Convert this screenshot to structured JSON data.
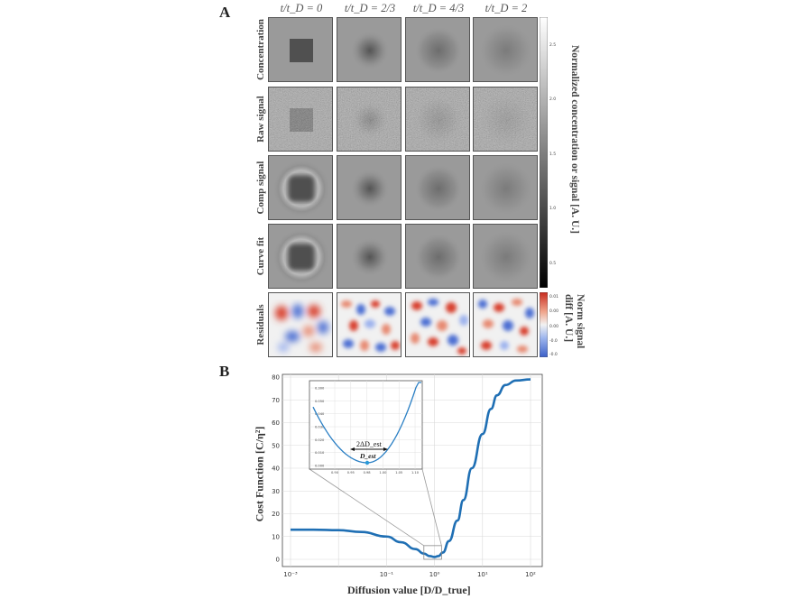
{
  "panel_a": {
    "letter": "A",
    "column_headers": [
      "t/t_D = 0",
      "t/t_D = 2/3",
      "t/t_D = 4/3",
      "t/t_D = 2"
    ],
    "row_labels": [
      "Concentration",
      "Raw signal",
      "Comp signal",
      "Curve fit",
      "Residuals"
    ],
    "colorbar_gray": {
      "title": "Normalized concentration or signal [A. U.]",
      "ticks": [
        "2.5",
        "2.0",
        "1.5",
        "1.0",
        "0.5"
      ],
      "colors": [
        "#ffffff",
        "#000000"
      ]
    },
    "colorbar_residual": {
      "title_line1": "Norm signal",
      "title_line2": "diff [A. U.]",
      "ticks": [
        "0.01",
        "0.00",
        "0.00",
        "-0.0",
        "-0.0"
      ],
      "colors": [
        "#d7301f",
        "#f2f2f2",
        "#3b6fd6"
      ]
    }
  },
  "panel_b": {
    "letter": "B",
    "ylabel": "Cost Function [C/η²]",
    "xlabel": "Diffusion value [D/D_true]",
    "inset_label_delta": "2ΔD_est",
    "inset_label_est": "D_est"
  },
  "chart_data": {
    "type": "line",
    "xscale": "log",
    "xlim": [
      0.001,
      100
    ],
    "ylim": [
      0,
      80
    ],
    "x_tick_labels": [
      "10⁻³",
      "10⁻¹",
      "10⁰",
      "10¹",
      "10²"
    ],
    "y_tick_labels": [
      "0",
      "10",
      "20",
      "30",
      "40",
      "50",
      "60",
      "70",
      "80"
    ],
    "grid": true,
    "series": [
      {
        "color": "#1f6fb4",
        "x": [
          0.001,
          0.003,
          0.01,
          0.03,
          0.1,
          0.2,
          0.4,
          0.6,
          0.8,
          1.0,
          1.2,
          1.5,
          2,
          3,
          4,
          6,
          10,
          15,
          20,
          30,
          50,
          100
        ],
        "y": [
          13,
          13,
          12.8,
          12,
          10,
          7.5,
          4.5,
          2.5,
          1.4,
          1.0,
          1.4,
          3,
          8,
          17,
          26,
          40,
          55,
          66,
          72,
          76.5,
          78.5,
          79
        ]
      }
    ],
    "inset": {
      "x_range": [
        0.6,
        1.4
      ],
      "y_tick_labels": [
        "0.300",
        "0.050",
        "0.040",
        "0.030",
        "0.020",
        "0.010",
        "0.000"
      ],
      "x_tick_labels": [
        "0.90",
        "0.95",
        "0.98",
        "1.00",
        "1.05",
        "1.10"
      ]
    }
  }
}
